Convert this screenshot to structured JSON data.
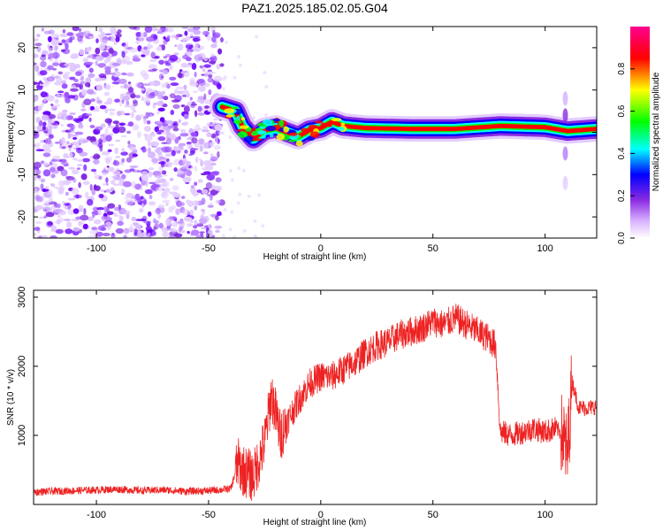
{
  "title": "PAZ1.2025.185.02.05.G04",
  "chart_data": [
    {
      "type": "heatmap",
      "xlabel": "Height of straight line (km)",
      "ylabel": "Frequency (Hz)",
      "xlim": [
        -128,
        123
      ],
      "ylim": [
        -25,
        25
      ],
      "xticks": [
        -100,
        -50,
        0,
        50,
        100
      ],
      "yticks": [
        -20,
        -10,
        0,
        10,
        20
      ],
      "colorbar": {
        "label": "Normalized spectral amplitude",
        "range": [
          0,
          1
        ],
        "ticks": [
          "0.0",
          "0.2",
          "0.4",
          "0.6",
          "0.8"
        ],
        "colors": [
          "#ffffff",
          "#d9b3ff",
          "#8a2be2",
          "#0000ff",
          "#00ffff",
          "#00ff00",
          "#ffff00",
          "#ff0000",
          "#ff00a0"
        ]
      },
      "noise_region": {
        "x": [
          -128,
          -44
        ],
        "y": [
          -25,
          25
        ],
        "amplitude": [
          0.05,
          0.2
        ]
      },
      "signal_ridge": [
        {
          "x": -44,
          "y": 6
        },
        {
          "x": -38,
          "y": 5
        },
        {
          "x": -35,
          "y": 1.5
        },
        {
          "x": -30,
          "y": -1.5
        },
        {
          "x": -25,
          "y": 0.5
        },
        {
          "x": -20,
          "y": 1
        },
        {
          "x": -15,
          "y": 0
        },
        {
          "x": -10,
          "y": -1
        },
        {
          "x": -5,
          "y": 0.5
        },
        {
          "x": 0,
          "y": 1
        },
        {
          "x": 5,
          "y": 2.5
        },
        {
          "x": 10,
          "y": 1.5
        },
        {
          "x": 20,
          "y": 1
        },
        {
          "x": 40,
          "y": 0.8
        },
        {
          "x": 60,
          "y": 0.8
        },
        {
          "x": 80,
          "y": 1.5
        },
        {
          "x": 100,
          "y": 1.2
        },
        {
          "x": 110,
          "y": 0.3
        },
        {
          "x": 123,
          "y": 0.8
        }
      ]
    },
    {
      "type": "line",
      "xlabel": "Height of straight line (km)",
      "ylabel": "SNR (10 * v/v)",
      "xlim": [
        -128,
        123
      ],
      "ylim": [
        0,
        3100
      ],
      "xticks": [
        -100,
        -50,
        0,
        50,
        100
      ],
      "yticks": [
        1000,
        2000,
        3000
      ],
      "color": "#ee2222",
      "series": [
        {
          "x": [
            -128,
            -110,
            -100,
            -90,
            -80,
            -70,
            -60,
            -50,
            -45,
            -40,
            -37,
            -35,
            -30,
            -25,
            -22,
            -20,
            -18,
            -15,
            -10,
            -5,
            0,
            5,
            10,
            15,
            20,
            25,
            30,
            35,
            40,
            45,
            50,
            55,
            60,
            65,
            70,
            75,
            78,
            80,
            85,
            90,
            95,
            100,
            105,
            108,
            110,
            112,
            115,
            120,
            123
          ],
          "y": [
            180,
            200,
            210,
            220,
            200,
            210,
            190,
            200,
            210,
            230,
            600,
            500,
            400,
            900,
            1600,
            1300,
            1000,
            1200,
            1500,
            1750,
            1850,
            1850,
            1950,
            2050,
            2200,
            2300,
            2350,
            2450,
            2500,
            2550,
            2650,
            2600,
            2700,
            2600,
            2500,
            2400,
            2300,
            1050,
            1000,
            1050,
            1100,
            1050,
            1100,
            1000,
            700,
            1800,
            1400,
            1400,
            1420
          ]
        }
      ]
    }
  ]
}
